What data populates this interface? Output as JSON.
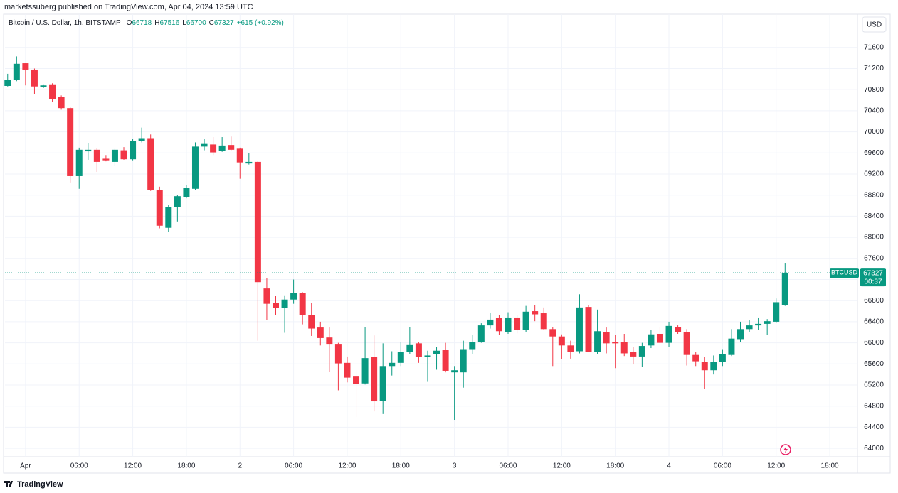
{
  "header": {
    "published": "marketssuberg published on TradingView.com, Apr 04, 2024 13:59 UTC"
  },
  "legend": {
    "symbol": "Bitcoin / U.S. Dollar, 1h, BITSTAMP",
    "labels": [
      "O",
      "H",
      "L",
      "C"
    ],
    "change": "+615 (+0.92%)"
  },
  "currency_button": "USD",
  "price_tag": {
    "symbol": "BTCUSD",
    "countdown": "00:37"
  },
  "brand": "TradingView",
  "chart_data": {
    "type": "candlestick",
    "up_color": "#089981",
    "down_color": "#f23645",
    "grid": true,
    "ylim": [
      63840,
      72230
    ],
    "yticks": [
      64000,
      64400,
      64800,
      65200,
      65600,
      66000,
      66400,
      66800,
      67200,
      67600,
      68000,
      68400,
      68800,
      69200,
      69600,
      70000,
      70400,
      70800,
      71200,
      71600
    ],
    "xlim": [
      -0.3,
      95.1
    ],
    "xticks": [
      {
        "value": 2,
        "label": "Apr"
      },
      {
        "value": 8,
        "label": "06:00"
      },
      {
        "value": 14,
        "label": "12:00"
      },
      {
        "value": 20,
        "label": "18:00"
      },
      {
        "value": 26,
        "label": "2"
      },
      {
        "value": 32,
        "label": "06:00"
      },
      {
        "value": 38,
        "label": "12:00"
      },
      {
        "value": 44,
        "label": "18:00"
      },
      {
        "value": 50,
        "label": "3"
      },
      {
        "value": 56,
        "label": "06:00"
      },
      {
        "value": 62,
        "label": "12:00"
      },
      {
        "value": 68,
        "label": "18:00"
      },
      {
        "value": 74,
        "label": "4"
      },
      {
        "value": 80,
        "label": "06:00"
      },
      {
        "value": 86,
        "label": "12:00"
      },
      {
        "value": 92,
        "label": "18:00"
      }
    ],
    "series": [
      {
        "name": "BTCUSD",
        "open": [
          70870,
          70980,
          71300,
          71180,
          70850,
          70900,
          70660,
          70450,
          69160,
          69630,
          69660,
          69490,
          69430,
          69650,
          69480,
          69830,
          69880,
          68900,
          68180,
          68580,
          68760,
          68920,
          69720,
          69760,
          69640,
          69750,
          69680,
          69400,
          69430,
          67030,
          66760,
          66660,
          66820,
          66940,
          66530,
          66290,
          66100,
          65980,
          65620,
          65360,
          65230,
          65730,
          64900,
          65560,
          65620,
          65820,
          65990,
          65730,
          65780,
          65860,
          65440,
          65440,
          65880,
          66020,
          66330,
          66470,
          66200,
          66480,
          66240,
          66600,
          66560,
          66260,
          66120,
          65950,
          65840,
          66680,
          65830,
          66200,
          66010,
          66010,
          65830,
          65740,
          65950,
          66170,
          66000,
          66300,
          66210,
          65770,
          65640,
          65480,
          65640,
          65770,
          66070,
          66260,
          66330,
          66360,
          66400,
          66718
        ],
        "high": [
          71100,
          71430,
          71310,
          71200,
          70900,
          70920,
          70690,
          70470,
          69700,
          69780,
          69690,
          69560,
          69680,
          69710,
          69870,
          70080,
          69950,
          68960,
          68620,
          68800,
          68990,
          69800,
          69860,
          69900,
          69900,
          69910,
          69700,
          69600,
          69450,
          67230,
          66890,
          66900,
          67200,
          66960,
          66760,
          66400,
          66290,
          66000,
          65740,
          65480,
          66300,
          66140,
          65990,
          65840,
          66010,
          66300,
          66020,
          65850,
          65920,
          66000,
          65560,
          66040,
          66150,
          66370,
          66560,
          66520,
          66580,
          66530,
          66700,
          66710,
          66670,
          66300,
          66160,
          66040,
          66920,
          66710,
          66630,
          66290,
          66150,
          66170,
          65920,
          66000,
          66250,
          66300,
          66400,
          66330,
          66260,
          65820,
          65730,
          65760,
          65880,
          66260,
          66400,
          66430,
          66480,
          66450,
          66840,
          67516
        ],
        "low": [
          70860,
          70960,
          70880,
          70720,
          70830,
          70560,
          70420,
          69040,
          68920,
          69470,
          69240,
          69440,
          69360,
          69470,
          69460,
          69800,
          68880,
          68170,
          68100,
          68300,
          68740,
          68900,
          69650,
          69560,
          69620,
          69650,
          69110,
          69380,
          66040,
          66430,
          66520,
          66190,
          66740,
          66350,
          66130,
          65950,
          65450,
          65100,
          65250,
          64590,
          65210,
          64700,
          64650,
          65380,
          65560,
          65780,
          65620,
          65260,
          65490,
          65440,
          64540,
          65150,
          65780,
          66000,
          66270,
          66150,
          66170,
          66180,
          66200,
          66410,
          66240,
          65560,
          65690,
          65700,
          65800,
          65820,
          65790,
          65800,
          65520,
          65750,
          65590,
          65540,
          65900,
          65990,
          65920,
          66170,
          65570,
          65560,
          65120,
          65400,
          65560,
          65750,
          66020,
          66200,
          66250,
          66150,
          66380,
          66700
        ],
        "close": [
          70990,
          71290,
          71180,
          70860,
          70880,
          70620,
          70450,
          69160,
          69660,
          69660,
          69430,
          69460,
          69660,
          69480,
          69830,
          69880,
          68900,
          68220,
          68580,
          68780,
          68940,
          69720,
          69770,
          69610,
          69740,
          69660,
          69420,
          69430,
          67150,
          66740,
          66660,
          66820,
          66940,
          66520,
          66270,
          66090,
          65980,
          65610,
          65340,
          65220,
          65710,
          64890,
          65560,
          65620,
          65820,
          65970,
          65730,
          65760,
          65850,
          65470,
          65480,
          65880,
          66020,
          66330,
          66440,
          66220,
          66480,
          66250,
          66590,
          66540,
          66260,
          66120,
          65950,
          65830,
          66670,
          65830,
          66220,
          65990,
          65990,
          65800,
          65740,
          65940,
          66160,
          66000,
          66320,
          66210,
          65770,
          65650,
          65480,
          65640,
          65790,
          66080,
          66260,
          66330,
          66360,
          66410,
          66770,
          67327
        ]
      }
    ]
  }
}
